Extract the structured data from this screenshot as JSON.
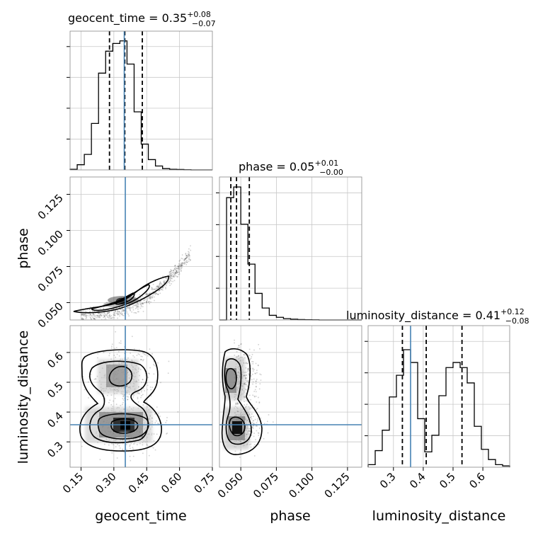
{
  "chart_data": {
    "type": "corner",
    "parameters": [
      "geocent_time",
      "phase",
      "luminosity_distance"
    ],
    "truth": {
      "geocent_time": 0.355,
      "phase": 0.047,
      "luminosity_distance": 0.36
    },
    "panels": {
      "geocent_time": {
        "title": {
          "main": "geocent_time = 0.35",
          "sup": "+0.08",
          "sub": "−0.07"
        },
        "xlim": [
          0.1,
          0.75
        ],
        "quantiles": [
          0.28,
          0.35,
          0.43
        ],
        "hist": {
          "edges": [
            0.1,
            0.1325,
            0.165,
            0.1975,
            0.23,
            0.2625,
            0.295,
            0.3275,
            0.36,
            0.3925,
            0.425,
            0.4575,
            0.49,
            0.5225,
            0.555,
            0.5875,
            0.62,
            0.6525,
            0.685,
            0.7175,
            0.75
          ],
          "counts": [
            0.005,
            0.04,
            0.12,
            0.36,
            0.75,
            0.92,
            0.98,
            1.0,
            0.82,
            0.45,
            0.2,
            0.08,
            0.03,
            0.01,
            0.005,
            0.003,
            0.001,
            0.0,
            0.0,
            0.0
          ]
        },
        "yticks_count": 4
      },
      "phase": {
        "title": {
          "main": "phase = 0.05",
          "sup": "+0.01",
          "sub": "−0.00"
        },
        "xlim": [
          0.035,
          0.135
        ],
        "quantiles": [
          0.043,
          0.047,
          0.056
        ],
        "hist": {
          "edges": [
            0.035,
            0.04,
            0.045,
            0.05,
            0.055,
            0.06,
            0.065,
            0.07,
            0.075,
            0.08,
            0.085,
            0.09,
            0.095,
            0.1,
            0.105,
            0.11,
            0.115,
            0.12,
            0.125,
            0.13,
            0.135
          ],
          "counts": [
            0.0,
            0.92,
            1.0,
            0.72,
            0.42,
            0.2,
            0.09,
            0.035,
            0.02,
            0.01,
            0.006,
            0.003,
            0.002,
            0.001,
            0.0,
            0.0,
            0.0,
            0.0,
            0.0,
            0.0
          ]
        },
        "yticks_count": 4
      },
      "luminosity_distance": {
        "title": {
          "main": "luminosity_distance = 0.41",
          "sup": "+0.12",
          "sub": "−0.08"
        },
        "xlim": [
          0.215,
          0.69
        ],
        "quantiles": [
          0.33,
          0.41,
          0.53
        ],
        "hist": {
          "edges": [
            0.215,
            0.2388,
            0.2625,
            0.2863,
            0.31,
            0.3338,
            0.3575,
            0.3813,
            0.405,
            0.4288,
            0.4525,
            0.4763,
            0.5,
            0.5238,
            0.5475,
            0.5713,
            0.595,
            0.6188,
            0.6425,
            0.6663,
            0.69
          ],
          "counts": [
            0.02,
            0.13,
            0.29,
            0.55,
            0.72,
            0.92,
            0.82,
            0.38,
            0.12,
            0.25,
            0.56,
            0.78,
            0.82,
            0.78,
            0.66,
            0.32,
            0.14,
            0.06,
            0.02,
            0.01
          ],
          "scale_max": 0.97
        },
        "yticks_count": 4
      }
    },
    "axis_ticks": {
      "geocent_time": [
        "0.15",
        "0.30",
        "0.45",
        "0.60",
        "0.75"
      ],
      "phase": [
        "0.050",
        "0.075",
        "0.100",
        "0.125"
      ],
      "luminosity_distance": [
        "0.3",
        "0.4",
        "0.5",
        "0.6"
      ]
    },
    "axis_labels": {
      "geocent_time": "geocent_time",
      "phase": "phase",
      "luminosity_distance": "luminosity_distance"
    },
    "grid": true,
    "truth_color": "#4682b4",
    "quantile_style": "dashed"
  }
}
